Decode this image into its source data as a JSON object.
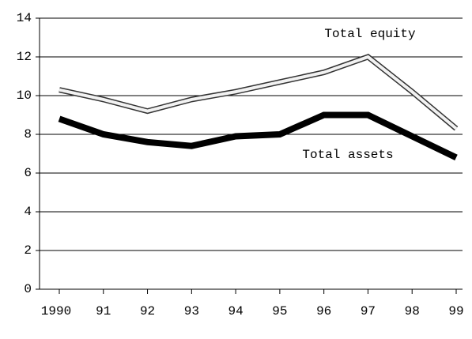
{
  "chart_data": {
    "type": "line",
    "categories": [
      "1990",
      "91",
      "92",
      "93",
      "94",
      "95",
      "96",
      "97",
      "98",
      "99"
    ],
    "series": [
      {
        "name": "Total equity",
        "color": "#f2f2f2",
        "values": [
          10.3,
          9.8,
          9.2,
          9.8,
          10.2,
          10.7,
          11.2,
          12.0,
          10.2,
          8.3
        ]
      },
      {
        "name": "Total assets",
        "color": "#000000",
        "values": [
          8.8,
          8.0,
          7.6,
          7.4,
          7.9,
          8.0,
          9.0,
          9.0,
          7.9,
          6.8
        ]
      }
    ],
    "ylim": [
      0,
      14
    ],
    "yticks": [
      0,
      2,
      4,
      6,
      8,
      10,
      12,
      14
    ],
    "grid": true
  }
}
